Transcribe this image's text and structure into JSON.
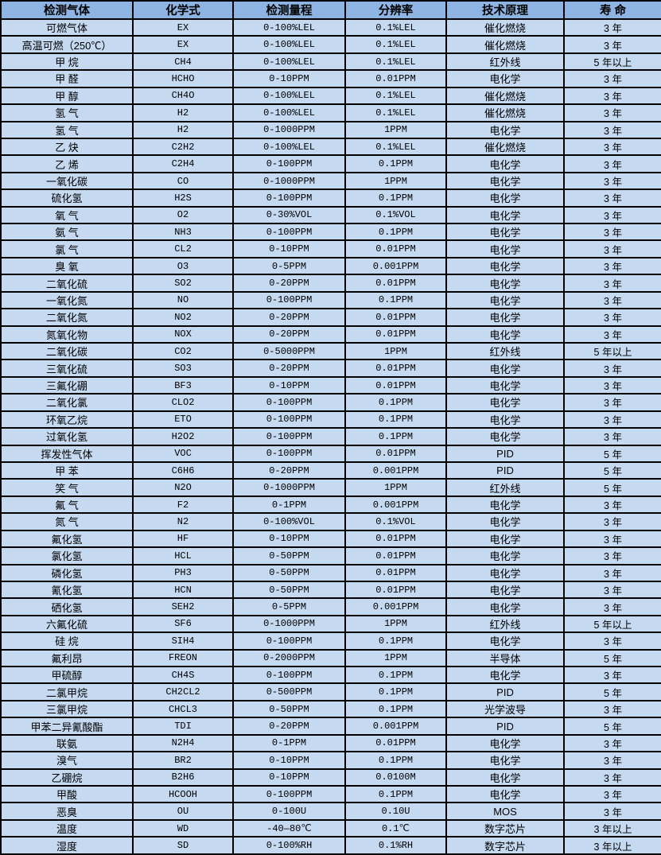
{
  "colors": {
    "header_bg": "#8db4e2",
    "row_bg": "#c5d9f1",
    "border": "#000000",
    "text": "#000000"
  },
  "table": {
    "headers": [
      "检测气体",
      "化学式",
      "检测量程",
      "分辨率",
      "技术原理",
      "寿 命"
    ],
    "rows": [
      [
        "可燃气体",
        "EX",
        "0-100%LEL",
        "0.1%LEL",
        "催化燃烧",
        "3 年"
      ],
      [
        "高温可燃（250℃）",
        "EX",
        "0-100%LEL",
        "0.1%LEL",
        "催化燃烧",
        "3 年"
      ],
      [
        "甲 烷",
        "CH4",
        "0-100%LEL",
        "0.1%LEL",
        "红外线",
        "5 年以上"
      ],
      [
        "甲 醛",
        "HCHO",
        "0-10PPM",
        "0.01PPM",
        "电化学",
        "3 年"
      ],
      [
        "甲 醇",
        "CH4O",
        "0-100%LEL",
        "0.1%LEL",
        "催化燃烧",
        "3 年"
      ],
      [
        "氢 气",
        "H2",
        "0-100%LEL",
        "0.1%LEL",
        "催化燃烧",
        "3 年"
      ],
      [
        "氢 气",
        "H2",
        "0-1000PPM",
        "1PPM",
        "电化学",
        "3 年"
      ],
      [
        "乙 炔",
        "C2H2",
        "0-100%LEL",
        "0.1%LEL",
        "催化燃烧",
        "3 年"
      ],
      [
        "乙 烯",
        "C2H4",
        "0-100PPM",
        "0.1PPM",
        "电化学",
        "3 年"
      ],
      [
        "一氧化碳",
        "CO",
        "0-1000PPM",
        "1PPM",
        "电化学",
        "3 年"
      ],
      [
        "硫化氢",
        "H2S",
        "0-100PPM",
        "0.1PPM",
        "电化学",
        "3 年"
      ],
      [
        "氧 气",
        "O2",
        "0-30%VOL",
        "0.1%VOL",
        "电化学",
        "3 年"
      ],
      [
        "氨 气",
        "NH3",
        "0-100PPM",
        "0.1PPM",
        "电化学",
        "3 年"
      ],
      [
        "氯 气",
        "CL2",
        "0-10PPM",
        "0.01PPM",
        "电化学",
        "3 年"
      ],
      [
        "臭 氧",
        "O3",
        "0-5PPM",
        "0.001PPM",
        "电化学",
        "3 年"
      ],
      [
        "二氧化硫",
        "SO2",
        "0-20PPM",
        "0.01PPM",
        "电化学",
        "3 年"
      ],
      [
        "一氧化氮",
        "NO",
        "0-100PPM",
        "0.1PPM",
        "电化学",
        "3 年"
      ],
      [
        "二氧化氮",
        "NO2",
        "0-20PPM",
        "0.01PPM",
        "电化学",
        "3 年"
      ],
      [
        "氮氧化物",
        "NOX",
        "0-20PPM",
        "0.01PPM",
        "电化学",
        "3 年"
      ],
      [
        "二氧化碳",
        "CO2",
        "0-5000PPM",
        "1PPM",
        "红外线",
        "5 年以上"
      ],
      [
        "三氧化硫",
        "SO3",
        "0-20PPM",
        "0.01PPM",
        "电化学",
        "3 年"
      ],
      [
        "三氟化硼",
        "BF3",
        "0-10PPM",
        "0.01PPM",
        "电化学",
        "3 年"
      ],
      [
        "二氧化氯",
        "CLO2",
        "0-100PPM",
        "0.1PPM",
        "电化学",
        "3 年"
      ],
      [
        "环氧乙烷",
        "ETO",
        "0-100PPM",
        "0.1PPM",
        "电化学",
        "3 年"
      ],
      [
        "过氧化氢",
        "H2O2",
        "0-100PPM",
        "0.1PPM",
        "电化学",
        "3 年"
      ],
      [
        "挥发性气体",
        "VOC",
        "0-100PPM",
        "0.01PPM",
        "PID",
        "5 年"
      ],
      [
        "甲 苯",
        "C6H6",
        "0-20PPM",
        "0.001PPM",
        "PID",
        "5 年"
      ],
      [
        "笑 气",
        "N2O",
        "0-1000PPM",
        "1PPM",
        "红外线",
        "5 年"
      ],
      [
        "氟 气",
        "F2",
        "0-1PPM",
        "0.001PPM",
        "电化学",
        "3 年"
      ],
      [
        "氮 气",
        "N2",
        "0-100%VOL",
        "0.1%VOL",
        "电化学",
        "3 年"
      ],
      [
        "氟化氢",
        "HF",
        "0-10PPM",
        "0.01PPM",
        "电化学",
        "3 年"
      ],
      [
        "氯化氢",
        "HCL",
        "0-50PPM",
        "0.01PPM",
        "电化学",
        "3 年"
      ],
      [
        "磷化氢",
        "PH3",
        "0-50PPM",
        "0.01PPM",
        "电化学",
        "3 年"
      ],
      [
        "氰化氢",
        "HCN",
        "0-50PPM",
        "0.01PPM",
        "电化学",
        "3 年"
      ],
      [
        "硒化氢",
        "SEH2",
        "0-5PPM",
        "0.001PPM",
        "电化学",
        "3 年"
      ],
      [
        "六氟化硫",
        "SF6",
        "0-1000PPM",
        "1PPM",
        "红外线",
        "5 年以上"
      ],
      [
        "硅 烷",
        "SIH4",
        "0-100PPM",
        "0.1PPM",
        "电化学",
        "3 年"
      ],
      [
        "氟利昂",
        "FREON",
        "0-2000PPM",
        "1PPM",
        "半导体",
        "5 年"
      ],
      [
        "甲硫醇",
        "CH4S",
        "0-100PPM",
        "0.1PPM",
        "电化学",
        "3 年"
      ],
      [
        "二氯甲烷",
        "CH2CL2",
        "0-500PPM",
        "0.1PPM",
        "PID",
        "5 年"
      ],
      [
        "三氯甲烷",
        "CHCL3",
        "0-50PPM",
        "0.1PPM",
        "光学波导",
        "3 年"
      ],
      [
        "甲苯二异氰酸酯",
        "TDI",
        "0-20PPM",
        "0.001PPM",
        "PID",
        "5 年"
      ],
      [
        "联氨",
        "N2H4",
        "0-1PPM",
        "0.01PPM",
        "电化学",
        "3 年"
      ],
      [
        "溴气",
        "BR2",
        "0-10PPM",
        "0.1PPM",
        "电化学",
        "3 年"
      ],
      [
        "乙硼烷",
        "B2H6",
        "0-10PPM",
        "0.0100M",
        "电化学",
        "3 年"
      ],
      [
        "甲酸",
        "HCOOH",
        "0-100PPM",
        "0.1PPM",
        "电化学",
        "3 年"
      ],
      [
        "恶臭",
        "OU",
        "0-100U",
        "0.10U",
        "MOS",
        "3 年"
      ],
      [
        "温度",
        "WD",
        "-40—80℃",
        "0.1℃",
        "数字芯片",
        "3 年以上"
      ],
      [
        "湿度",
        "SD",
        "0-100%RH",
        "0.1%RH",
        "数字芯片",
        "3 年以上"
      ]
    ]
  }
}
